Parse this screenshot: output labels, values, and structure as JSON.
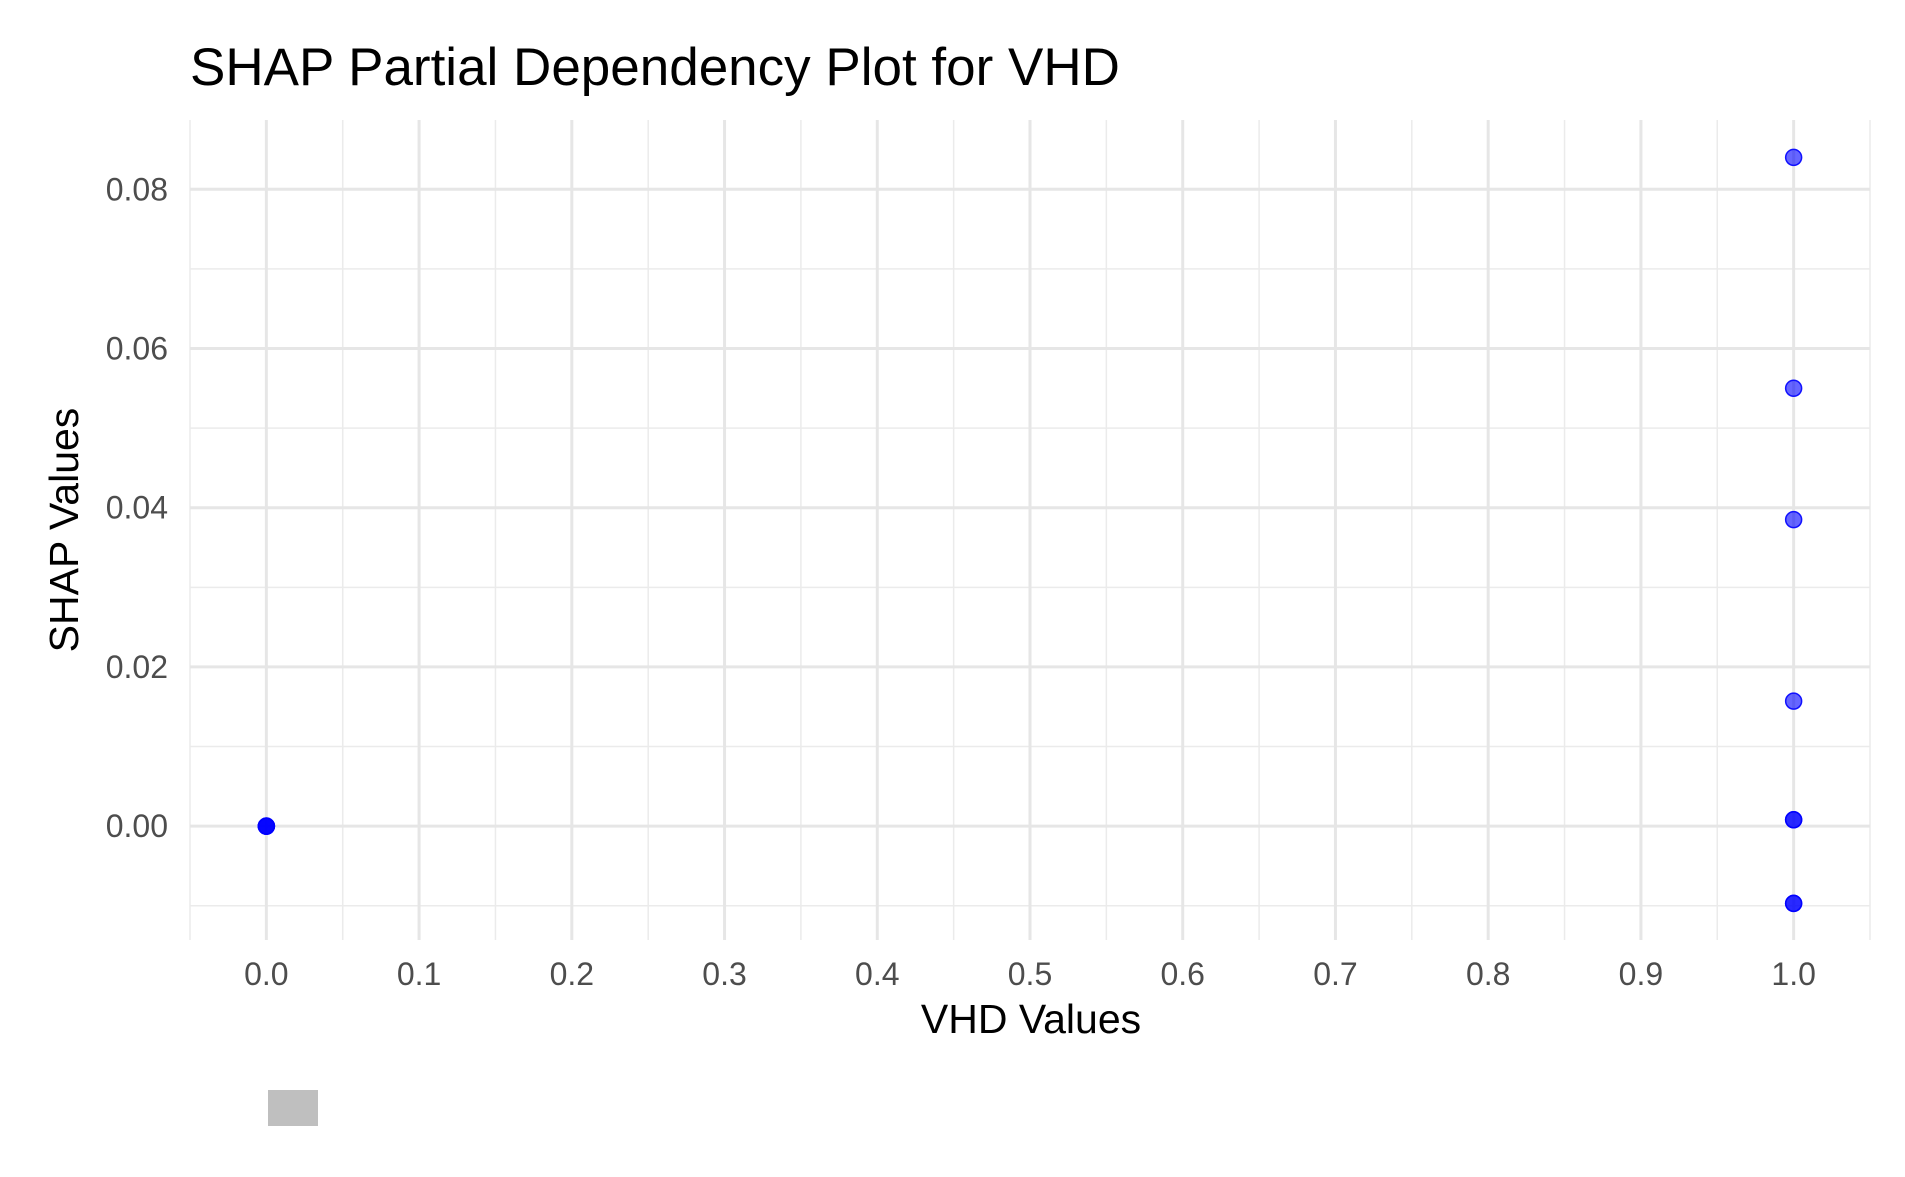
{
  "chart_data": {
    "type": "scatter",
    "title": "SHAP Partial Dependency Plot for VHD",
    "xlabel": "VHD Values",
    "ylabel": "SHAP Values",
    "xlim": [
      -0.05,
      1.05
    ],
    "ylim": [
      -0.0143,
      0.0887
    ],
    "x_ticks": [
      0.0,
      0.1,
      0.2,
      0.3,
      0.4,
      0.5,
      0.6,
      0.7,
      0.8,
      0.9,
      1.0
    ],
    "x_tick_labels": [
      "0.0",
      "0.1",
      "0.2",
      "0.3",
      "0.4",
      "0.5",
      "0.6",
      "0.7",
      "0.8",
      "0.9",
      "1.0"
    ],
    "y_ticks": [
      0.0,
      0.02,
      0.04,
      0.06,
      0.08
    ],
    "y_tick_labels": [
      "0.00",
      "0.02",
      "0.04",
      "0.06",
      "0.08"
    ],
    "grid": true,
    "point_color": "#0000FF",
    "point_opacity": 0.6,
    "points": [
      {
        "x": 0.0,
        "y": 0.0
      },
      {
        "x": 0.0,
        "y": 0.0
      },
      {
        "x": 0.0,
        "y": 0.0
      },
      {
        "x": 0.0,
        "y": 0.0
      },
      {
        "x": 1.0,
        "y": 0.084
      },
      {
        "x": 1.0,
        "y": 0.055
      },
      {
        "x": 1.0,
        "y": 0.0385
      },
      {
        "x": 1.0,
        "y": 0.0157
      },
      {
        "x": 1.0,
        "y": 0.0008
      },
      {
        "x": 1.0,
        "y": 0.0008
      },
      {
        "x": 1.0,
        "y": -0.0097
      },
      {
        "x": 1.0,
        "y": -0.0097
      }
    ],
    "legend_swatch_color": "#bfbfbf"
  }
}
